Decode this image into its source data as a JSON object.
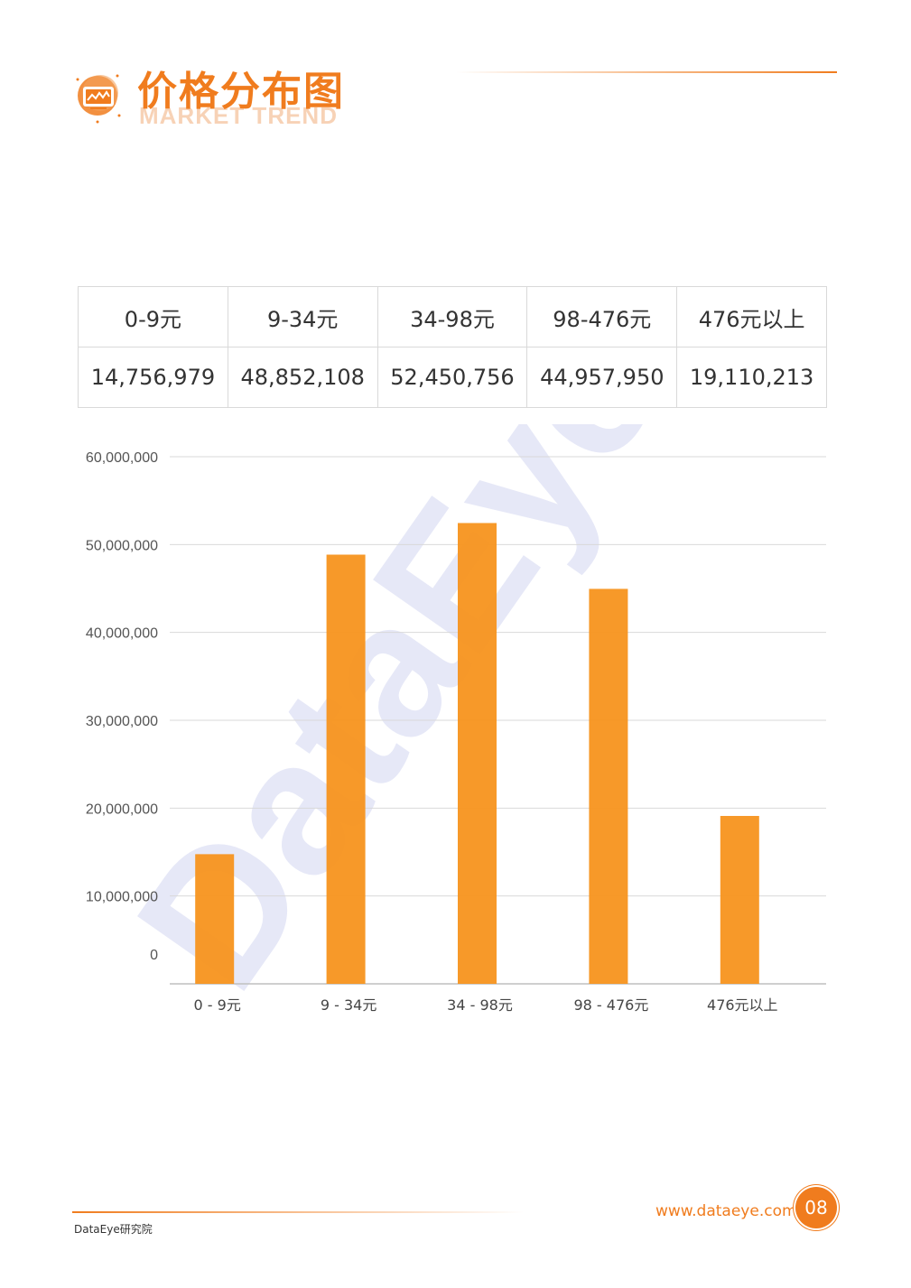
{
  "header": {
    "title": "价格分布图",
    "subtitle": "MARKET TREND",
    "icon": "chart-monitor-icon"
  },
  "table": {
    "headers": [
      "0-9元",
      "9-34元",
      "34-98元",
      "98-476元",
      "476元以上"
    ],
    "values": [
      "14,756,979",
      "48,852,108",
      "52,450,756",
      "44,957,950",
      "19,110,213"
    ]
  },
  "watermark": "DataEye",
  "chart_data": {
    "type": "bar",
    "categories": [
      "0 - 9元",
      "9 - 34元",
      "34 - 98元",
      "98 - 476元",
      "476元以上"
    ],
    "values": [
      14756979,
      48852108,
      52450756,
      44957950,
      19110213
    ],
    "ylim": [
      0,
      60000000
    ],
    "yticks": [
      0,
      10000000,
      20000000,
      30000000,
      40000000,
      50000000,
      60000000
    ],
    "ytick_labels": [
      "0",
      "10,000,000",
      "20,000,000",
      "30,000,000",
      "40,000,000",
      "50,000,000",
      "60,000,000"
    ],
    "grid": true,
    "bar_color": "#f7931e"
  },
  "footer": {
    "org": "DataEye研究院",
    "url": "www.dataeye.com",
    "page": "08"
  },
  "colors": {
    "accent": "#f07c1e",
    "watermark": "#e6e8f7"
  }
}
